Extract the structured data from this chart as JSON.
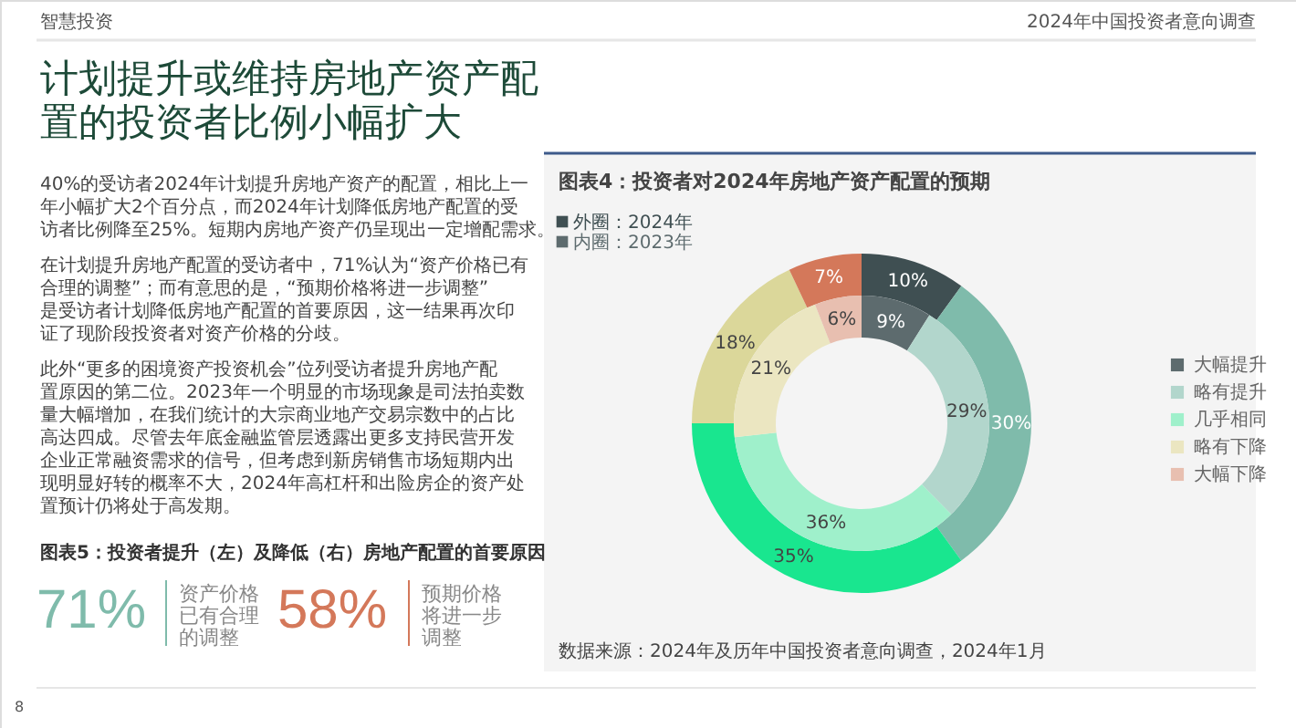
{
  "chart_data": {
    "type": "donut",
    "title": "图表4：投资者对2024年房地产资产配置的预期",
    "categories": [
      "大幅提升",
      "略有提升",
      "几乎相同",
      "略有下降",
      "大幅下降"
    ],
    "series": [
      {
        "name": "外圈：2024年",
        "values": [
          10,
          30,
          35,
          18,
          7
        ],
        "value_labels": [
          "10%",
          "30%",
          "35%",
          "18%",
          "7%"
        ],
        "colors": [
          "#3f4f52",
          "#7fbbab",
          "#19e68f",
          "#dbd79a",
          "#d4785a"
        ]
      },
      {
        "name": "内圈：2023年",
        "values": [
          9,
          29,
          36,
          21,
          6
        ],
        "value_labels": [
          "9%",
          "29%",
          "36%",
          "21%",
          "6%"
        ],
        "colors": [
          "#5d6b6e",
          "#b2d6cc",
          "#9ff0cb",
          "#ebe6c1",
          "#e8bfb0"
        ]
      }
    ],
    "legend": "right",
    "annotations": [
      "智慧投资",
      "2024年中国投资者意向调查",
      "计划提升或维持房地产资产配置的投资者比例小幅扩大",
      "40%的受访者2024年计划提升房地产资产的配置，相比上一年小幅扩大2个百分点，而2024年计划降低房地产配置的受访者比例降至25%。短期内房地产资产仍呈现出一定增配需求。",
      "在计划提升房地产配置的受访者中，71%认为“资产价格已有合理的调整”；而有意思的是，“预期价格将进一步调整”是受访者计划降低房地产配置的首要原因，这一结果再次印证了现阶段投资者对资产价格的分歧。",
      "此外“更多的困境资产投资机会”位列受访者提升房地产配置原因的第二位。2023年一个明显的市场现象是司法拍卖数量大幅增加，在我们统计的大宗商业地产交易宗数中的占比高达四成。尽管去年底金融监管层透露出更多支持民营开发企业正常融资需求的信号，但考虑到新房销售市场短期内出现明显好转的概率不大，2024年高杠杆和出险房企的资产处置预计仍将处于高发期。",
      "图表5：投资者提升（左）及降低（右）房地产配置的首要原因",
      "71%",
      "资产价格已有合理的调整",
      "58%",
      "预期价格将进一步调整",
      "数据来源：2024年及历年中国投资者意向调查，2024年1月",
      "8"
    ]
  }
}
